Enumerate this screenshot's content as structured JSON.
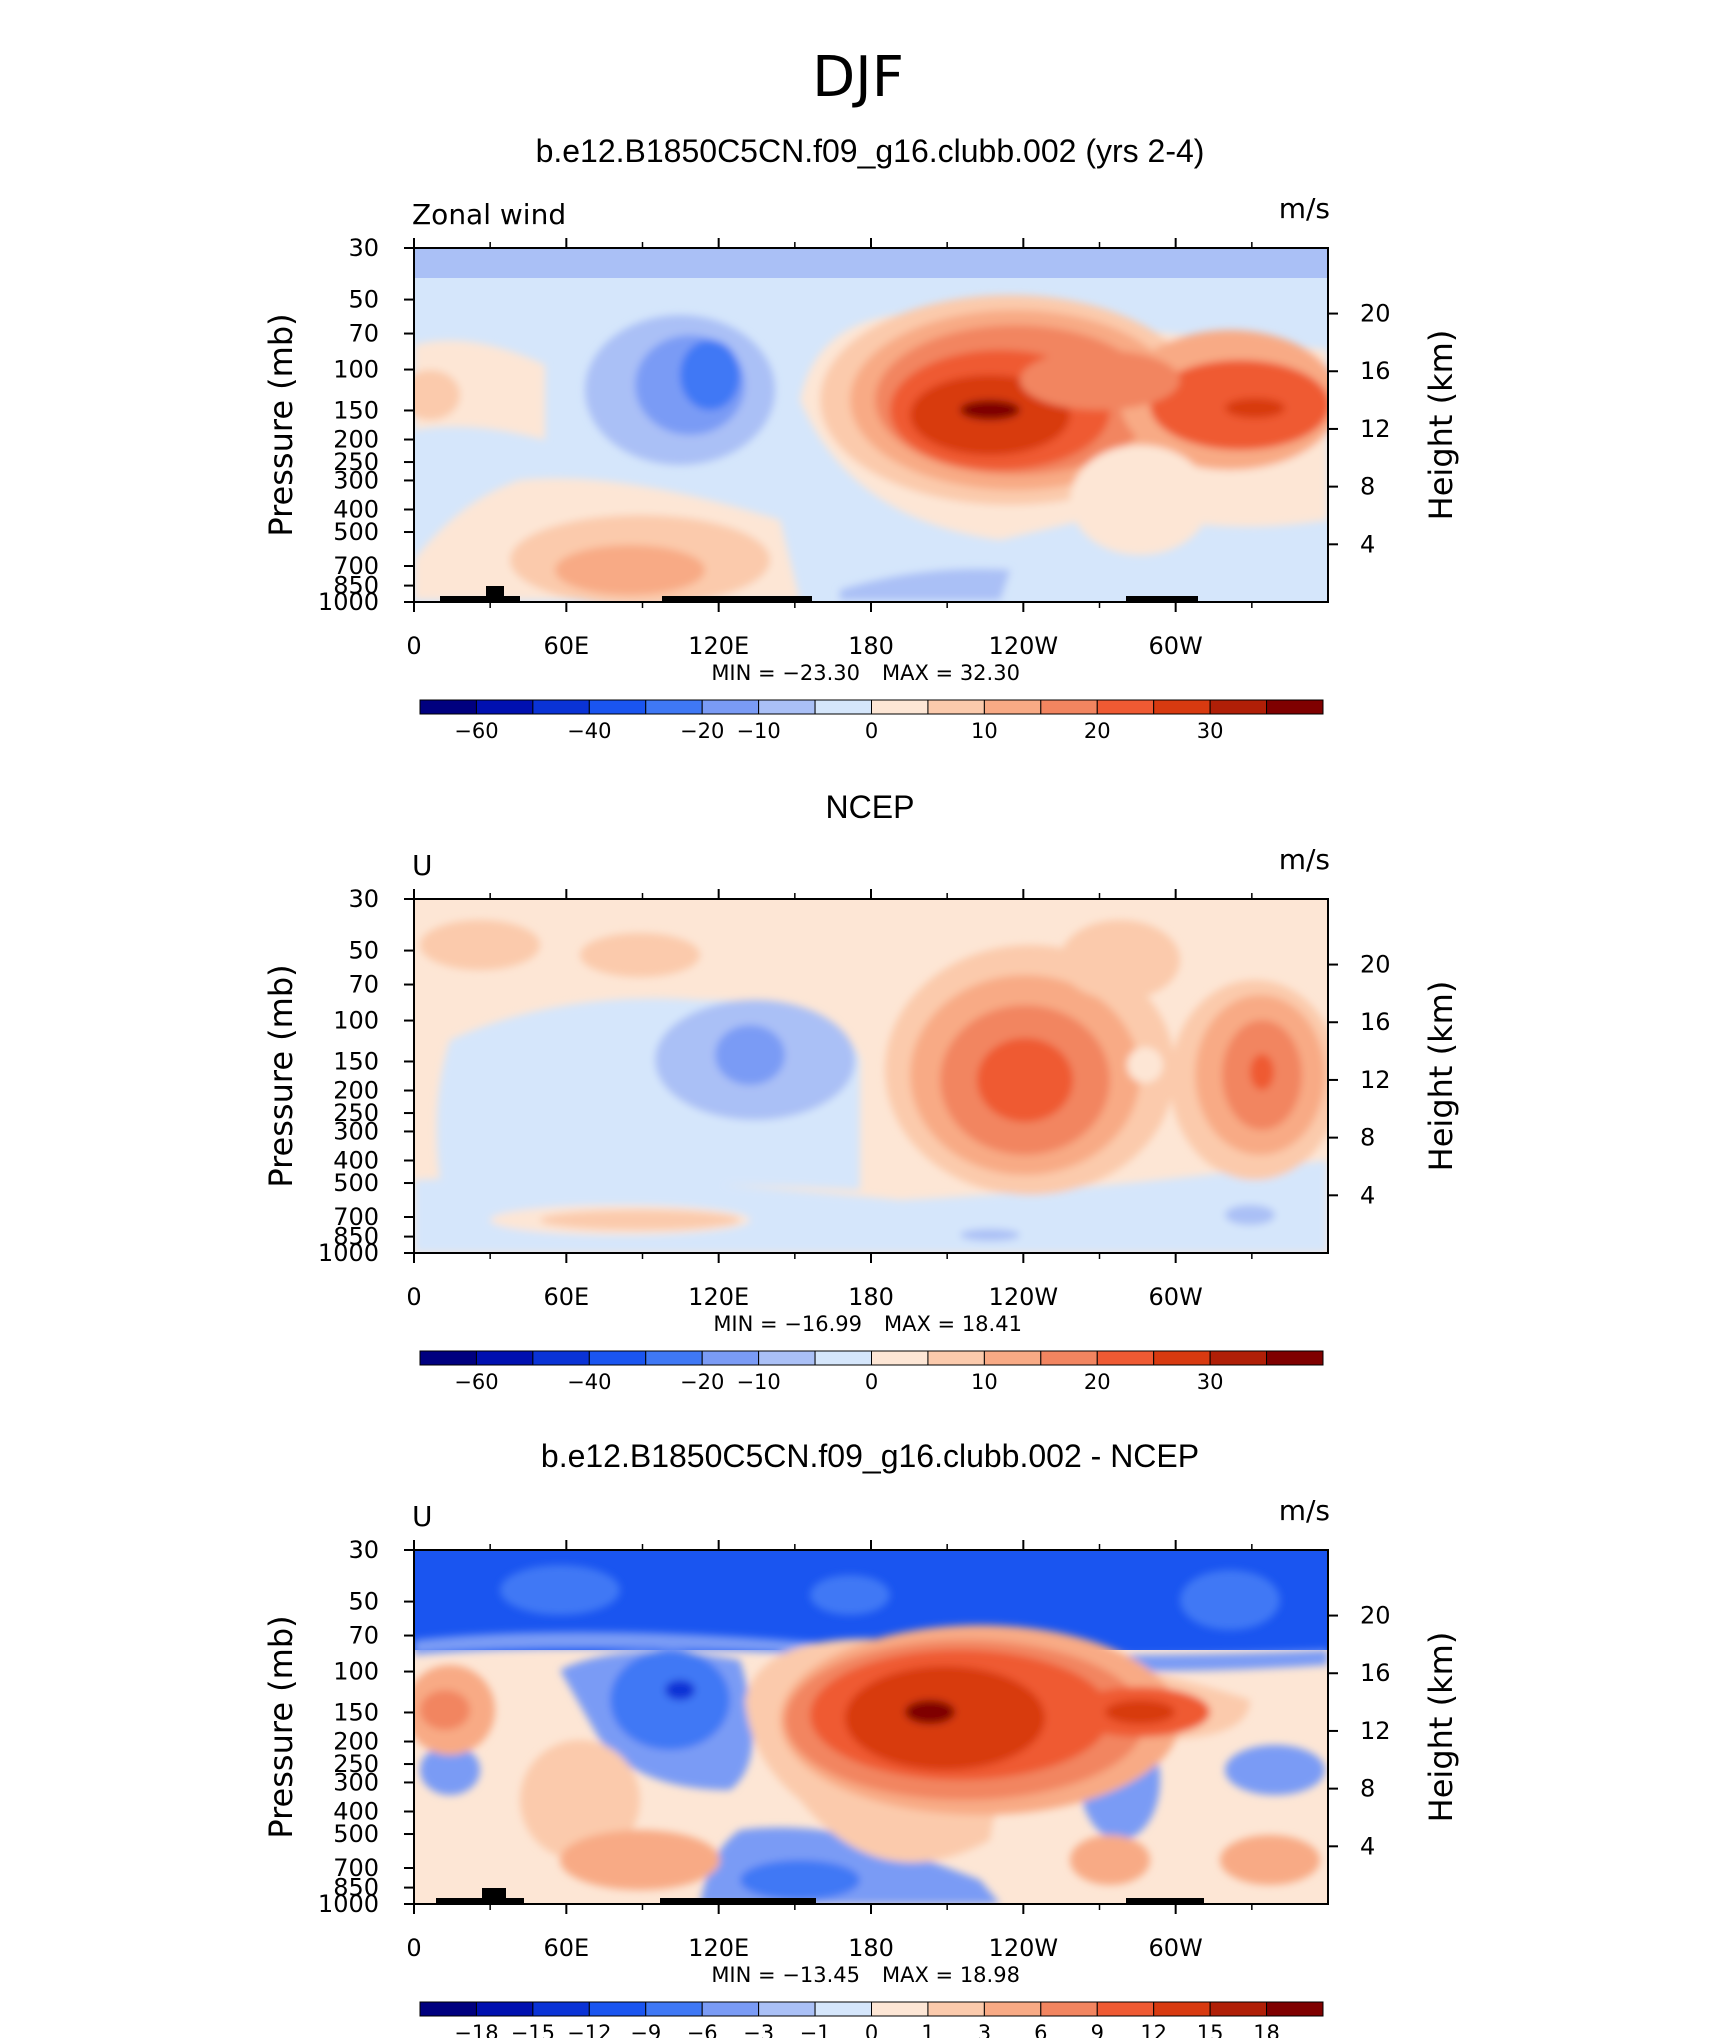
{
  "figure": {
    "season": "DJF"
  },
  "colors": {
    "levels_main": [
      "#00007f",
      "#0010b0",
      "#0a33d6",
      "#1a55f0",
      "#3f78f5",
      "#7a9bf5",
      "#aac0f6",
      "#d5e6fb",
      "#fde6d5",
      "#fbcaac",
      "#f8aa85",
      "#f28560",
      "#ef5a33",
      "#d83a10",
      "#b01f07",
      "#7f0000"
    ],
    "levels_diff": [
      "#00007f",
      "#0010b0",
      "#0a33d6",
      "#1a55f0",
      "#3f78f5",
      "#7a9bf5",
      "#aac0f6",
      "#d5e6fb",
      "#fde6d5",
      "#fbcaac",
      "#f8aa85",
      "#f28560",
      "#ef5a33",
      "#d83a10",
      "#b01f07",
      "#7f0000"
    ]
  },
  "chart_data": [
    {
      "type": "heatmap",
      "panel": "model",
      "title": "b.e12.B1850C5CN.f09_g16.clubb.002 (yrs 2-4)",
      "variable_label": "Zonal wind",
      "units": "m/s",
      "xlabel": "",
      "ylabel_left": "Pressure (mb)",
      "ylabel_right": "Height (km)",
      "x_ticks": [
        "0",
        "60E",
        "120E",
        "180",
        "120W",
        "60W"
      ],
      "pressure_ticks": [
        "30",
        "50",
        "70",
        "100",
        "150",
        "200",
        "250",
        "300",
        "400",
        "500",
        "700",
        "850",
        "1000"
      ],
      "height_ticks": [
        "20",
        "16",
        "12",
        "8",
        "4"
      ],
      "min_label": "MIN = −23.30",
      "max_label": "MAX = 32.30",
      "min": -23.3,
      "max": 32.3,
      "colorbar_labels": [
        "−60",
        "−40",
        "−20",
        "−10",
        "0",
        "10",
        "20",
        "30"
      ]
    },
    {
      "type": "heatmap",
      "panel": "obs",
      "title": "NCEP",
      "variable_label": "U",
      "units": "m/s",
      "ylabel_left": "Pressure (mb)",
      "ylabel_right": "Height (km)",
      "x_ticks": [
        "0",
        "60E",
        "120E",
        "180",
        "120W",
        "60W"
      ],
      "pressure_ticks": [
        "30",
        "50",
        "70",
        "100",
        "150",
        "200",
        "250",
        "300",
        "400",
        "500",
        "700",
        "850",
        "1000"
      ],
      "height_ticks": [
        "20",
        "16",
        "12",
        "8",
        "4"
      ],
      "min_label": "MIN = −16.99",
      "max_label": "MAX = 18.41",
      "min": -16.99,
      "max": 18.41,
      "colorbar_labels": [
        "−60",
        "−40",
        "−20",
        "−10",
        "0",
        "10",
        "20",
        "30"
      ]
    },
    {
      "type": "heatmap",
      "panel": "difference",
      "title": "b.e12.B1850C5CN.f09_g16.clubb.002 - NCEP",
      "variable_label": "U",
      "units": "m/s",
      "ylabel_left": "Pressure (mb)",
      "ylabel_right": "Height (km)",
      "x_ticks": [
        "0",
        "60E",
        "120E",
        "180",
        "120W",
        "60W"
      ],
      "pressure_ticks": [
        "30",
        "50",
        "70",
        "100",
        "150",
        "200",
        "250",
        "300",
        "400",
        "500",
        "700",
        "850",
        "1000"
      ],
      "height_ticks": [
        "20",
        "16",
        "12",
        "8",
        "4"
      ],
      "min_label": "MIN = −13.45",
      "max_label": "MAX = 18.98",
      "min": -13.45,
      "max": 18.98,
      "colorbar_labels": [
        "−18",
        "−15",
        "−12",
        "−9",
        "−6",
        "−3",
        "−1",
        "0",
        "1",
        "3",
        "6",
        "9",
        "12",
        "15",
        "18"
      ]
    }
  ]
}
